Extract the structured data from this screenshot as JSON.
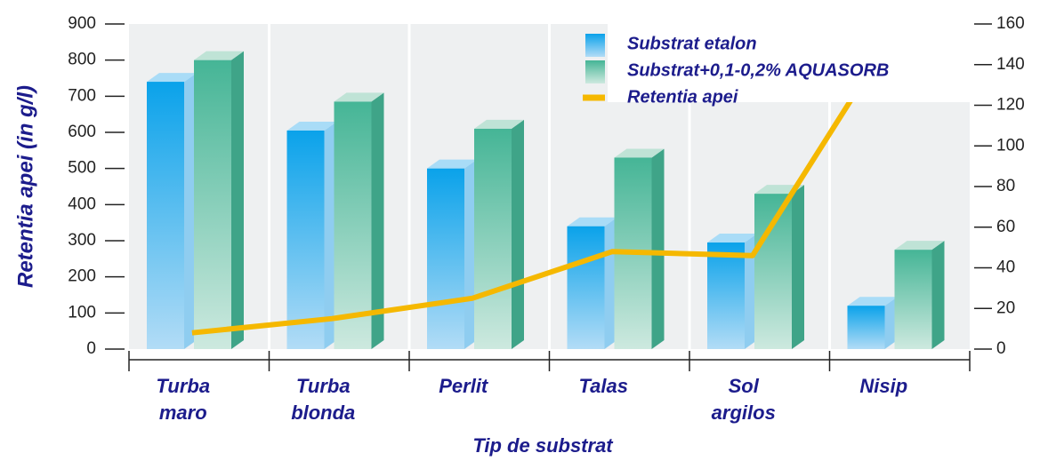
{
  "chart_data": {
    "type": "bar",
    "y_label": "Retentia apei (in g/l)",
    "x_label": "Tip de substrat",
    "categories": [
      "Turba maro",
      "Turba blonda",
      "Perlit",
      "Talas",
      "Sol argilos",
      "Nisip"
    ],
    "series": [
      {
        "name": "Substrat etalon",
        "color": "#1aa0e8",
        "values": [
          740,
          605,
          500,
          340,
          295,
          120
        ]
      },
      {
        "name": "Substrat+0,1-0,2% AQUASORB",
        "color": "#4db89a",
        "values": [
          800,
          685,
          610,
          530,
          430,
          275
        ]
      },
      {
        "name": "Retentia apei",
        "color": "#f5b800",
        "type": "line",
        "axis": "y2",
        "values": [
          8,
          15,
          25,
          48,
          46,
          155
        ]
      }
    ],
    "ylim": [
      0,
      900
    ],
    "yticks": [
      0,
      100,
      200,
      300,
      400,
      500,
      600,
      700,
      800,
      900
    ],
    "y2lim": [
      0,
      160
    ],
    "y2ticks": [
      0,
      20,
      40,
      60,
      80,
      100,
      120,
      140,
      160
    ]
  }
}
